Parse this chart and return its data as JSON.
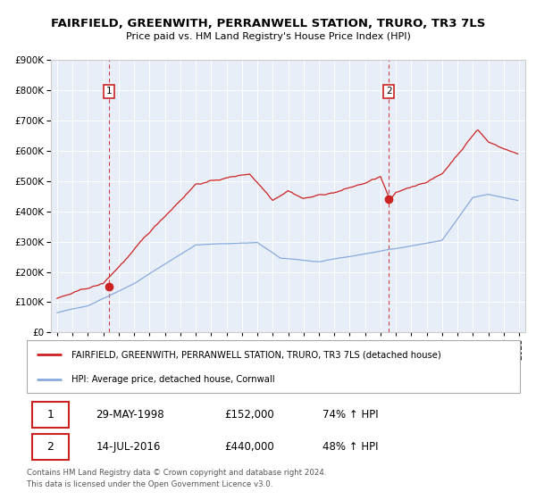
{
  "title": "FAIRFIELD, GREENWITH, PERRANWELL STATION, TRURO, TR3 7LS",
  "subtitle": "Price paid vs. HM Land Registry's House Price Index (HPI)",
  "legend_line1": "FAIRFIELD, GREENWITH, PERRANWELL STATION, TRURO, TR3 7LS (detached house)",
  "legend_line2": "HPI: Average price, detached house, Cornwall",
  "sale1_date": "29-MAY-1998",
  "sale1_price": 152000,
  "sale1_hpi": "74% ↑ HPI",
  "sale2_date": "14-JUL-2016",
  "sale2_price": 440000,
  "sale2_hpi": "48% ↑ HPI",
  "footer": "Contains HM Land Registry data © Crown copyright and database right 2024.\nThis data is licensed under the Open Government Licence v3.0.",
  "red_color": "#cc2222",
  "blue_color": "#88aadd",
  "bg_color": "#e8eef8",
  "grid_color": "#ffffff",
  "ylim_max": 900000,
  "ylim_min": 0,
  "sale1_x": 1998.38,
  "sale2_x": 2016.54,
  "title_fontsize": 9.5,
  "subtitle_fontsize": 8,
  "tick_fontsize": 7,
  "ytick_fontsize": 7.5
}
